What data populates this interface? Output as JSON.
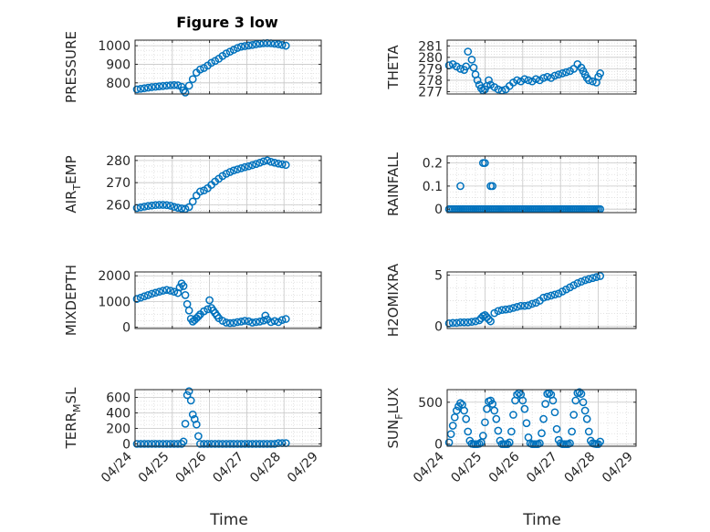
{
  "figure": {
    "title": "Figure 3 low",
    "xlabel": "Time",
    "x_ticks": [
      "04/24",
      "04/25",
      "04/26",
      "04/27",
      "04/28",
      "04/29"
    ],
    "colors": {
      "marker": "#0072BD",
      "axes": "#262626",
      "grid": "#dcdcdc"
    }
  },
  "chart_data": [
    {
      "type": "scatter",
      "ylabel_main": "PRESSURE",
      "ylabel_sub": "",
      "xlim": [
        0,
        5
      ],
      "ylim": [
        740,
        1030
      ],
      "yticks": [
        800,
        900,
        1000
      ],
      "ytick_labels": [
        "800",
        "900",
        "1000"
      ],
      "grid": true,
      "series": [
        {
          "x": [
            0.05,
            0.15,
            0.25,
            0.35,
            0.45,
            0.55,
            0.65,
            0.75,
            0.85,
            0.95,
            1.05,
            1.15,
            1.25,
            1.3,
            1.35,
            1.45,
            1.55,
            1.65,
            1.75,
            1.85,
            1.95,
            2.05,
            2.15,
            2.25,
            2.35,
            2.45,
            2.55,
            2.65,
            2.75,
            2.85,
            2.95,
            3.05,
            3.15,
            3.25,
            3.35,
            3.45,
            3.55,
            3.65,
            3.75,
            3.85,
            3.95,
            4.05
          ],
          "y": [
            765,
            768,
            771,
            774,
            777,
            779,
            781,
            783,
            785,
            787,
            788,
            787,
            779,
            760,
            748,
            785,
            820,
            855,
            872,
            880,
            893,
            908,
            918,
            930,
            945,
            958,
            968,
            978,
            988,
            995,
            998,
            1001,
            1004,
            1008,
            1011,
            1013,
            1014,
            1013,
            1011,
            1008,
            1004,
            1000
          ]
        }
      ]
    },
    {
      "type": "scatter",
      "ylabel_main": "THETA",
      "ylabel_sub": "",
      "xlim": [
        0,
        5
      ],
      "ylim": [
        276.8,
        281.5
      ],
      "yticks": [
        277,
        278,
        279,
        280,
        281
      ],
      "ytick_labels": [
        "277",
        "278",
        "279",
        "280",
        "281"
      ],
      "grid": true,
      "series": [
        {
          "x": [
            0.05,
            0.15,
            0.25,
            0.35,
            0.45,
            0.5,
            0.55,
            0.6,
            0.65,
            0.7,
            0.75,
            0.8,
            0.85,
            0.9,
            0.95,
            1.0,
            1.05,
            1.1,
            1.15,
            1.25,
            1.35,
            1.45,
            1.55,
            1.65,
            1.75,
            1.85,
            1.95,
            2.05,
            2.15,
            2.25,
            2.35,
            2.45,
            2.55,
            2.65,
            2.75,
            2.85,
            2.95,
            3.05,
            3.15,
            3.25,
            3.35,
            3.45,
            3.55,
            3.6,
            3.65,
            3.7,
            3.75,
            3.85,
            3.95,
            4.0,
            4.05
          ],
          "y": [
            279.3,
            279.4,
            279.2,
            279.0,
            278.9,
            279.2,
            280.5,
            281.6,
            279.8,
            279.1,
            278.5,
            278.0,
            277.6,
            277.3,
            277.1,
            277.2,
            277.5,
            278.0,
            277.6,
            277.4,
            277.2,
            277.1,
            277.2,
            277.5,
            277.8,
            278.0,
            277.9,
            278.1,
            278.0,
            277.9,
            278.1,
            278.0,
            278.2,
            278.3,
            278.2,
            278.4,
            278.5,
            278.6,
            278.7,
            278.8,
            279.0,
            279.4,
            279.1,
            278.8,
            278.5,
            278.2,
            278.0,
            277.9,
            277.8,
            278.3,
            278.6
          ]
        }
      ]
    },
    {
      "type": "scatter",
      "ylabel_main": "AIR",
      "ylabel_sub": "T",
      "ylabel_tail": "EMP",
      "xlim": [
        0,
        5
      ],
      "ylim": [
        256.5,
        282
      ],
      "yticks": [
        260,
        270,
        280
      ],
      "ytick_labels": [
        "260",
        "270",
        "280"
      ],
      "grid": true,
      "series": [
        {
          "x": [
            0.05,
            0.15,
            0.25,
            0.35,
            0.45,
            0.55,
            0.65,
            0.75,
            0.85,
            0.95,
            1.05,
            1.15,
            1.25,
            1.35,
            1.45,
            1.55,
            1.65,
            1.75,
            1.85,
            1.95,
            2.05,
            2.15,
            2.25,
            2.35,
            2.45,
            2.55,
            2.65,
            2.75,
            2.85,
            2.95,
            3.05,
            3.15,
            3.25,
            3.35,
            3.45,
            3.55,
            3.65,
            3.75,
            3.85,
            3.95,
            4.05
          ],
          "y": [
            258.6,
            258.9,
            259.2,
            259.5,
            259.7,
            259.9,
            260.0,
            260.0,
            259.9,
            259.6,
            259.1,
            258.7,
            258.4,
            258.2,
            259.0,
            261.5,
            264.2,
            266.0,
            266.5,
            267.5,
            269.0,
            270.5,
            271.8,
            273.0,
            274.0,
            274.8,
            275.5,
            276.0,
            276.5,
            277.0,
            277.4,
            277.9,
            278.4,
            279.0,
            279.6,
            280.0,
            279.4,
            279.0,
            278.6,
            278.3,
            278.0
          ]
        }
      ]
    },
    {
      "type": "scatter",
      "ylabel_main": "RAINFALL",
      "ylabel_sub": "",
      "xlim": [
        0,
        5
      ],
      "ylim": [
        -0.015,
        0.23
      ],
      "yticks": [
        0,
        0.1,
        0.2
      ],
      "ytick_labels": [
        "0",
        "0.1",
        "0.2"
      ],
      "grid": true,
      "series": [
        {
          "x": [
            0.05,
            0.1,
            0.15,
            0.2,
            0.25,
            0.3,
            0.35,
            0.4,
            0.45,
            0.5,
            0.55,
            0.6,
            0.65,
            0.7,
            0.75,
            0.8,
            0.85,
            0.9,
            0.95,
            1.0,
            1.05,
            1.1,
            1.15,
            1.2,
            1.25,
            1.3,
            1.35,
            1.4,
            1.45,
            1.5,
            1.55,
            1.6,
            1.65,
            1.7,
            1.75,
            1.8,
            1.85,
            1.9,
            1.95,
            2.0,
            2.05,
            2.1,
            2.15,
            2.2,
            2.25,
            2.3,
            2.35,
            2.4,
            2.45,
            2.5,
            2.55,
            2.6,
            2.65,
            2.7,
            2.75,
            2.8,
            2.85,
            2.9,
            2.95,
            3.0,
            3.05,
            3.1,
            3.15,
            3.2,
            3.25,
            3.3,
            3.35,
            3.4,
            3.45,
            3.5,
            3.55,
            3.6,
            3.65,
            3.7,
            3.75,
            3.8,
            3.85,
            3.9,
            3.95,
            4.0,
            4.05,
            0.35,
            0.95,
            1.0,
            1.15,
            1.2
          ],
          "y": [
            0,
            0,
            0,
            0,
            0,
            0,
            0,
            0,
            0,
            0,
            0,
            0,
            0,
            0,
            0,
            0,
            0,
            0,
            0,
            0,
            0,
            0,
            0,
            0,
            0,
            0,
            0,
            0,
            0,
            0,
            0,
            0,
            0,
            0,
            0,
            0,
            0,
            0,
            0,
            0,
            0,
            0,
            0,
            0,
            0,
            0,
            0,
            0,
            0,
            0,
            0,
            0,
            0,
            0,
            0,
            0,
            0,
            0,
            0,
            0,
            0,
            0,
            0,
            0,
            0,
            0,
            0,
            0,
            0,
            0,
            0,
            0,
            0,
            0,
            0,
            0,
            0,
            0,
            0,
            0,
            0,
            0.1,
            0.2,
            0.2,
            0.1,
            0.1
          ]
        }
      ]
    },
    {
      "type": "scatter",
      "ylabel_main": "MIXDEPTH",
      "ylabel_sub": "",
      "xlim": [
        0,
        5
      ],
      "ylim": [
        -50,
        2150
      ],
      "yticks": [
        0,
        1000,
        2000
      ],
      "ytick_labels": [
        "0",
        "1000",
        "2000"
      ],
      "grid": true,
      "series": [
        {
          "x": [
            0.05,
            0.15,
            0.25,
            0.35,
            0.45,
            0.55,
            0.65,
            0.75,
            0.85,
            0.95,
            1.05,
            1.15,
            1.2,
            1.25,
            1.3,
            1.35,
            1.4,
            1.45,
            1.5,
            1.55,
            1.6,
            1.65,
            1.7,
            1.75,
            1.85,
            1.95,
            2.0,
            2.05,
            2.1,
            2.15,
            2.2,
            2.25,
            2.35,
            2.45,
            2.55,
            2.65,
            2.75,
            2.85,
            2.95,
            3.05,
            3.15,
            3.25,
            3.35,
            3.45,
            3.5,
            3.55,
            3.65,
            3.75,
            3.85,
            3.95,
            4.05
          ],
          "y": [
            1100,
            1150,
            1200,
            1250,
            1300,
            1340,
            1380,
            1420,
            1450,
            1420,
            1380,
            1330,
            1550,
            1700,
            1600,
            1250,
            900,
            650,
            330,
            220,
            280,
            350,
            420,
            500,
            620,
            700,
            1050,
            750,
            650,
            550,
            450,
            350,
            250,
            180,
            160,
            170,
            200,
            220,
            250,
            230,
            180,
            200,
            220,
            260,
            450,
            300,
            200,
            240,
            200,
            280,
            320
          ]
        }
      ]
    },
    {
      "type": "scatter",
      "ylabel_main": "H2OMIXRA",
      "ylabel_sub": "",
      "xlim": [
        0,
        5
      ],
      "ylim": [
        -0.2,
        5.3
      ],
      "yticks": [
        0,
        5
      ],
      "ytick_labels": [
        "0",
        "5"
      ],
      "grid": true,
      "series": [
        {
          "x": [
            0.05,
            0.15,
            0.25,
            0.35,
            0.45,
            0.55,
            0.65,
            0.75,
            0.85,
            0.9,
            0.95,
            1.0,
            1.05,
            1.1,
            1.15,
            1.25,
            1.35,
            1.45,
            1.55,
            1.65,
            1.75,
            1.85,
            1.95,
            2.05,
            2.15,
            2.25,
            2.35,
            2.45,
            2.55,
            2.65,
            2.75,
            2.85,
            2.95,
            3.05,
            3.15,
            3.25,
            3.35,
            3.45,
            3.55,
            3.65,
            3.75,
            3.85,
            3.95,
            4.05
          ],
          "y": [
            0.3,
            0.35,
            0.35,
            0.4,
            0.4,
            0.4,
            0.45,
            0.5,
            0.6,
            0.8,
            1.0,
            1.1,
            0.9,
            0.7,
            0.5,
            1.3,
            1.5,
            1.6,
            1.65,
            1.7,
            1.8,
            1.9,
            2.0,
            2.0,
            2.05,
            2.2,
            2.3,
            2.5,
            2.8,
            2.9,
            3.0,
            3.1,
            3.2,
            3.4,
            3.6,
            3.8,
            4.0,
            4.2,
            4.35,
            4.5,
            4.6,
            4.7,
            4.8,
            4.9
          ]
        }
      ]
    },
    {
      "type": "scatter",
      "ylabel_main": "TERR",
      "ylabel_sub": "M",
      "ylabel_tail": "SL",
      "xlim": [
        0,
        5
      ],
      "ylim": [
        -30,
        700
      ],
      "yticks": [
        0,
        200,
        400,
        600
      ],
      "ytick_labels": [
        "0",
        "200",
        "400",
        "600"
      ],
      "grid": true,
      "series": [
        {
          "x": [
            0.05,
            0.15,
            0.25,
            0.35,
            0.45,
            0.55,
            0.65,
            0.75,
            0.85,
            0.95,
            1.05,
            1.15,
            1.25,
            1.3,
            1.35,
            1.4,
            1.45,
            1.5,
            1.55,
            1.6,
            1.65,
            1.7,
            1.75,
            1.85,
            1.95,
            2.05,
            2.15,
            2.25,
            2.35,
            2.45,
            2.55,
            2.65,
            2.75,
            2.85,
            2.95,
            3.05,
            3.15,
            3.25,
            3.35,
            3.45,
            3.55,
            3.65,
            3.75,
            3.85,
            3.95,
            4.05
          ],
          "y": [
            0,
            0,
            0,
            0,
            0,
            0,
            0,
            0,
            0,
            0,
            0,
            0,
            0,
            30,
            260,
            630,
            680,
            560,
            380,
            320,
            250,
            100,
            0,
            0,
            0,
            0,
            0,
            0,
            0,
            0,
            0,
            0,
            0,
            0,
            0,
            0,
            0,
            0,
            0,
            0,
            0,
            0,
            0,
            10,
            10,
            10
          ]
        }
      ]
    },
    {
      "type": "scatter",
      "ylabel_main": "SUN",
      "ylabel_sub": "F",
      "ylabel_tail": "LUX",
      "xlim": [
        0,
        5
      ],
      "ylim": [
        -25,
        650
      ],
      "yticks": [
        0,
        500
      ],
      "ytick_labels": [
        "0",
        "500"
      ],
      "grid": true,
      "series": [
        {
          "x": [
            0.05,
            0.1,
            0.15,
            0.2,
            0.25,
            0.3,
            0.35,
            0.4,
            0.45,
            0.5,
            0.55,
            0.6,
            0.65,
            0.7,
            0.75,
            0.8,
            0.85,
            0.9,
            0.95,
            1.0,
            1.05,
            1.1,
            1.15,
            1.2,
            1.25,
            1.3,
            1.35,
            1.4,
            1.45,
            1.5,
            1.55,
            1.6,
            1.65,
            1.7,
            1.75,
            1.8,
            1.85,
            1.9,
            1.95,
            2.0,
            2.05,
            2.1,
            2.15,
            2.2,
            2.25,
            2.3,
            2.35,
            2.4,
            2.45,
            2.5,
            2.55,
            2.6,
            2.65,
            2.7,
            2.75,
            2.8,
            2.85,
            2.9,
            2.95,
            3.0,
            3.05,
            3.1,
            3.15,
            3.2,
            3.25,
            3.3,
            3.35,
            3.4,
            3.45,
            3.5,
            3.55,
            3.6,
            3.65,
            3.7,
            3.75,
            3.8,
            3.85,
            3.9,
            3.95,
            4.0,
            4.05
          ],
          "y": [
            20,
            120,
            220,
            320,
            400,
            450,
            490,
            470,
            400,
            300,
            150,
            40,
            5,
            0,
            0,
            0,
            5,
            20,
            100,
            260,
            420,
            510,
            520,
            480,
            400,
            300,
            160,
            40,
            0,
            0,
            0,
            0,
            20,
            150,
            350,
            520,
            590,
            610,
            590,
            520,
            420,
            250,
            80,
            10,
            0,
            0,
            0,
            0,
            10,
            130,
            300,
            480,
            600,
            610,
            590,
            520,
            380,
            180,
            50,
            10,
            0,
            0,
            0,
            0,
            10,
            150,
            350,
            520,
            610,
            620,
            600,
            500,
            400,
            300,
            150,
            40,
            10,
            5,
            0,
            0,
            30
          ]
        }
      ]
    }
  ]
}
